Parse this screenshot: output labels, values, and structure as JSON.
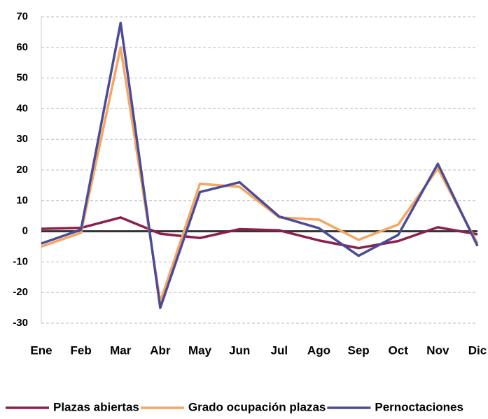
{
  "chart_data": {
    "type": "line",
    "categories": [
      "Ene",
      "Feb",
      "Mar",
      "Abr",
      "May",
      "Jun",
      "Jul",
      "Ago",
      "Sep",
      "Oct",
      "Nov",
      "Dic"
    ],
    "series": [
      {
        "name": "Plazas abiertas",
        "color": "#8b1f4e",
        "values": [
          0.8,
          1.1,
          4.5,
          -0.8,
          -2.2,
          0.7,
          0.3,
          -3,
          -5.5,
          -3.2,
          1.3,
          -1
        ]
      },
      {
        "name": "Grado ocupación plazas",
        "color": "#f4a662",
        "values": [
          -5,
          -0.5,
          60,
          -23,
          15.5,
          14.5,
          4.5,
          3.8,
          -2.8,
          2.2,
          20.5,
          -4
        ]
      },
      {
        "name": "Pernoctaciones",
        "color": "#4b4b98",
        "values": [
          -4,
          0.5,
          68,
          -25,
          12.8,
          16,
          4.8,
          1,
          -8,
          -1.2,
          22,
          -4.8
        ]
      }
    ],
    "ylim": [
      -30,
      70
    ],
    "yticks": [
      -30,
      -20,
      -10,
      0,
      10,
      20,
      30,
      40,
      50,
      60,
      70
    ],
    "grid": true,
    "legend": "bottom"
  }
}
